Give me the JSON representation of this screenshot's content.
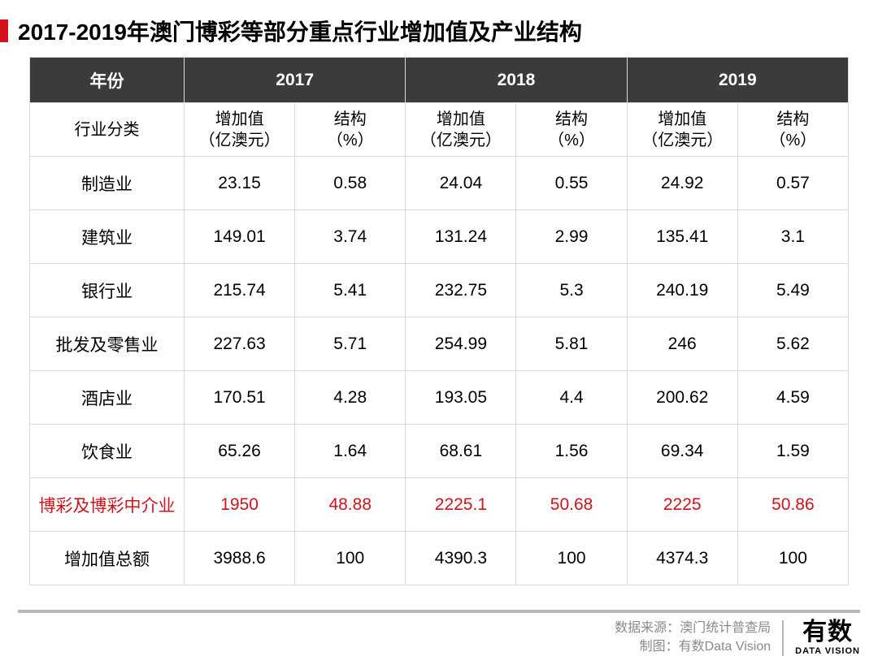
{
  "title": "2017-2019年澳门博彩等部分重点行业增加值及产业结构",
  "accent_color": "#d0121b",
  "header_bg": "#3b3b3b",
  "header_fg": "#ffffff",
  "border_color": "#d9d9d9",
  "highlight_color": "#d0121b",
  "table": {
    "type": "table",
    "corner_label_year": "年份",
    "corner_label_category": "行业分类",
    "years": [
      "2017",
      "2018",
      "2019"
    ],
    "subheaders": {
      "value": "增加值\n（亿澳元）",
      "pct": "结构\n（%）"
    },
    "rows": [
      {
        "label": "制造业",
        "cells": [
          "23.15",
          "0.58",
          "24.04",
          "0.55",
          "24.92",
          "0.57"
        ],
        "highlight": false
      },
      {
        "label": "建筑业",
        "cells": [
          "149.01",
          "3.74",
          "131.24",
          "2.99",
          "135.41",
          "3.1"
        ],
        "highlight": false
      },
      {
        "label": "银行业",
        "cells": [
          "215.74",
          "5.41",
          "232.75",
          "5.3",
          "240.19",
          "5.49"
        ],
        "highlight": false
      },
      {
        "label": "批发及零售业",
        "cells": [
          "227.63",
          "5.71",
          "254.99",
          "5.81",
          "246",
          "5.62"
        ],
        "highlight": false
      },
      {
        "label": "酒店业",
        "cells": [
          "170.51",
          "4.28",
          "193.05",
          "4.4",
          "200.62",
          "4.59"
        ],
        "highlight": false
      },
      {
        "label": "饮食业",
        "cells": [
          "65.26",
          "1.64",
          "68.61",
          "1.56",
          "69.34",
          "1.59"
        ],
        "highlight": false
      },
      {
        "label": "博彩及博彩中介业",
        "cells": [
          "1950",
          "48.88",
          "2225.1",
          "50.68",
          "2225",
          "50.86"
        ],
        "highlight": true
      },
      {
        "label": "增加值总额",
        "cells": [
          "3988.6",
          "100",
          "4390.3",
          "100",
          "4374.3",
          "100"
        ],
        "highlight": false
      }
    ]
  },
  "footer": {
    "source_label": "数据来源：",
    "source_value": "澳门统计普查局",
    "credit_label": "制图：",
    "credit_value": "有数Data Vision",
    "logo_cn": "有数",
    "logo_en": "DATA VISION"
  }
}
